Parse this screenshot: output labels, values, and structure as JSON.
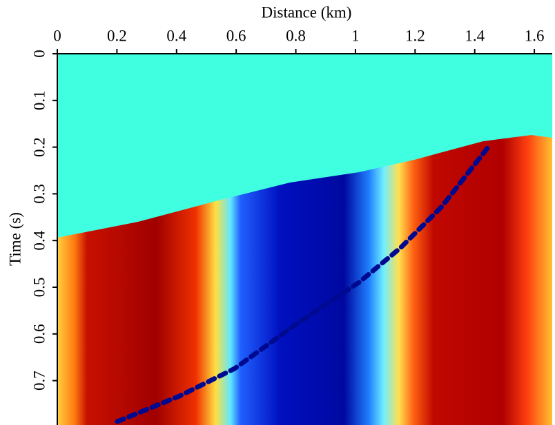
{
  "chart_data": {
    "type": "image",
    "x_label": "Distance (km)",
    "y_label": "Time (s)",
    "xlim": [
      0,
      1.66
    ],
    "xticks": [
      0,
      0.2,
      0.4,
      0.6,
      0.8,
      1,
      1.2,
      1.4,
      1.6
    ],
    "ylim": [
      0,
      0.795
    ],
    "yticks": [
      0,
      0.1,
      0.2,
      0.3,
      0.4,
      0.5,
      0.6,
      0.7
    ],
    "y_inverted": true,
    "x_axis_position": "top"
  }
}
